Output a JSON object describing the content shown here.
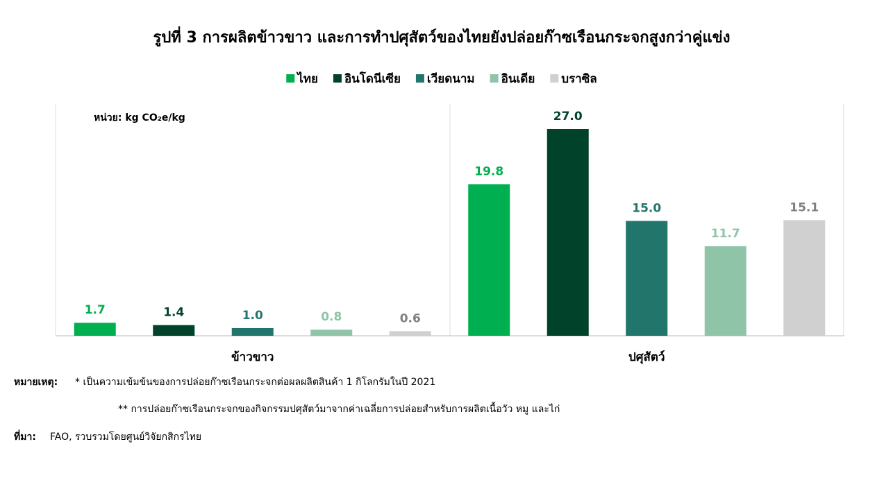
{
  "chart_data": {
    "type": "bar",
    "title": "รูปที่ 3 การผลิตข้าวขาว และการทำปศุสัตว์ของไทยยังปล่อยก๊าซเรือนกระจกสูงกว่าคู่แข่ง",
    "unit_label": "หน่วย: kg CO₂e/kg",
    "categories": [
      "ข้าวขาว",
      "ปศุสัตว์"
    ],
    "legend": "top",
    "series": [
      {
        "name": "ไทย",
        "color": "#00b050",
        "label_color": "#00b050",
        "values": [
          1.7,
          19.8
        ]
      },
      {
        "name": "อินโดนีเซีย",
        "color": "#00432a",
        "label_color": "#00432a",
        "values": [
          1.4,
          27
        ],
        "value_labels": [
          "1.4",
          "27.0"
        ]
      },
      {
        "name": "เวียดนาม",
        "color": "#21756a",
        "label_color": "#21756a",
        "values": [
          1,
          15
        ],
        "value_labels": [
          "1.0",
          "15.0"
        ]
      },
      {
        "name": "อินเดีย",
        "color": "#8fc4a8",
        "label_color": "#8fc4a8",
        "values": [
          0.8,
          11.7
        ]
      },
      {
        "name": "บราซิล",
        "color": "#d0d0d0",
        "label_color": "#7f7f7f",
        "values": [
          0.6,
          15.1
        ]
      }
    ]
  },
  "notes": {
    "label": "หมายเหตุ:",
    "items": [
      "* เป็นความเข้มข้นของการปล่อยก๊าซเรือนกระจกต่อผลผลิตสินค้า 1 กิโลกรัมในปี 2021",
      "** การปล่อยก๊าซเรือนกระจกของกิจกรรมปศุสัตว์มาจากค่าเฉลี่ยการปล่อยสำหรับการผลิตเนื้อวัว หมู และไก่"
    ]
  },
  "source": {
    "label": "ที่มา:",
    "text": "FAO, รวบรวมโดยศูนย์วิจัยกสิกรไทย"
  }
}
